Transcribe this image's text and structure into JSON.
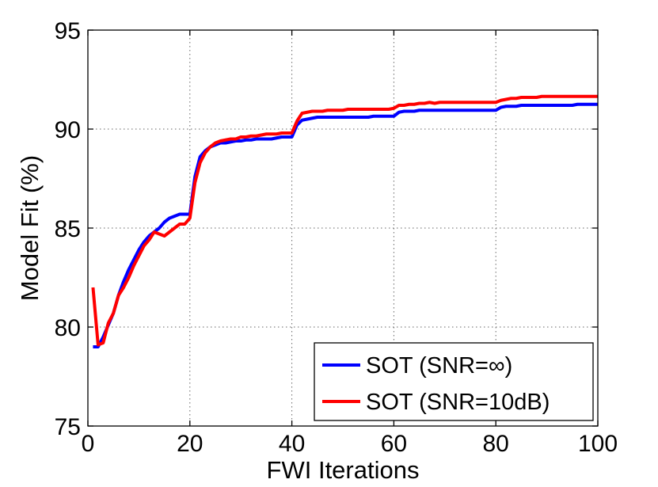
{
  "chart_data": {
    "type": "line",
    "title": "",
    "xlabel": "FWI Iterations",
    "ylabel": "Model Fit (%)",
    "xlim": [
      0,
      100
    ],
    "ylim": [
      75,
      95
    ],
    "xticks": [
      0,
      20,
      40,
      60,
      80,
      100
    ],
    "yticks": [
      75,
      80,
      85,
      90,
      95
    ],
    "xtick_labels": [
      "0",
      "20",
      "40",
      "60",
      "80",
      "100"
    ],
    "ytick_labels": [
      "75",
      "80",
      "85",
      "90",
      "95"
    ],
    "grid": true,
    "legend_position": "bottom-right",
    "series": [
      {
        "name": "SOT (SNR=∞)",
        "color": "#0000ff",
        "x": [
          1,
          2,
          3,
          4,
          5,
          6,
          7,
          8,
          9,
          10,
          11,
          12,
          13,
          14,
          15,
          16,
          17,
          18,
          19,
          20,
          21,
          22,
          23,
          24,
          25,
          26,
          27,
          28,
          29,
          30,
          31,
          32,
          33,
          34,
          35,
          36,
          37,
          38,
          39,
          40,
          41,
          42,
          43,
          44,
          45,
          46,
          47,
          48,
          49,
          50,
          51,
          52,
          53,
          54,
          55,
          56,
          57,
          58,
          59,
          60,
          61,
          62,
          63,
          64,
          65,
          66,
          67,
          68,
          69,
          70,
          71,
          72,
          73,
          74,
          75,
          76,
          77,
          78,
          79,
          80,
          81,
          82,
          83,
          84,
          85,
          86,
          87,
          88,
          89,
          90,
          91,
          92,
          93,
          94,
          95,
          96,
          97,
          98,
          99,
          100
        ],
        "y": [
          79.0,
          79.0,
          79.5,
          80.1,
          80.7,
          81.6,
          82.3,
          82.9,
          83.4,
          83.9,
          84.3,
          84.6,
          84.8,
          85.0,
          85.3,
          85.5,
          85.6,
          85.7,
          85.7,
          85.7,
          87.6,
          88.6,
          88.9,
          89.1,
          89.2,
          89.3,
          89.3,
          89.35,
          89.4,
          89.4,
          89.45,
          89.45,
          89.5,
          89.5,
          89.5,
          89.5,
          89.55,
          89.6,
          89.6,
          89.6,
          90.2,
          90.45,
          90.5,
          90.55,
          90.6,
          90.6,
          90.6,
          90.6,
          90.6,
          90.6,
          90.6,
          90.6,
          90.6,
          90.6,
          90.6,
          90.65,
          90.65,
          90.65,
          90.65,
          90.65,
          90.85,
          90.9,
          90.9,
          90.9,
          90.95,
          90.95,
          90.95,
          90.95,
          90.95,
          90.95,
          90.95,
          90.95,
          90.95,
          90.95,
          90.95,
          90.95,
          90.95,
          90.95,
          90.95,
          90.95,
          91.1,
          91.15,
          91.15,
          91.15,
          91.2,
          91.2,
          91.2,
          91.2,
          91.2,
          91.2,
          91.2,
          91.2,
          91.2,
          91.2,
          91.2,
          91.25,
          91.25,
          91.25,
          91.25,
          91.25
        ]
      },
      {
        "name": "SOT (SNR=10dB)",
        "color": "#ff0000",
        "x": [
          1,
          2,
          3,
          4,
          5,
          6,
          7,
          8,
          9,
          10,
          11,
          12,
          13,
          14,
          15,
          16,
          17,
          18,
          19,
          20,
          21,
          22,
          23,
          24,
          25,
          26,
          27,
          28,
          29,
          30,
          31,
          32,
          33,
          34,
          35,
          36,
          37,
          38,
          39,
          40,
          41,
          42,
          43,
          44,
          45,
          46,
          47,
          48,
          49,
          50,
          51,
          52,
          53,
          54,
          55,
          56,
          57,
          58,
          59,
          60,
          61,
          62,
          63,
          64,
          65,
          66,
          67,
          68,
          69,
          70,
          71,
          72,
          73,
          74,
          75,
          76,
          77,
          78,
          79,
          80,
          81,
          82,
          83,
          84,
          85,
          86,
          87,
          88,
          89,
          90,
          91,
          92,
          93,
          94,
          95,
          96,
          97,
          98,
          99,
          100
        ],
        "y": [
          82.0,
          79.1,
          79.2,
          80.2,
          80.7,
          81.6,
          82.0,
          82.5,
          83.1,
          83.6,
          84.1,
          84.4,
          84.8,
          84.7,
          84.6,
          84.8,
          85.0,
          85.2,
          85.2,
          85.5,
          87.3,
          88.3,
          88.8,
          89.1,
          89.3,
          89.4,
          89.45,
          89.5,
          89.5,
          89.6,
          89.6,
          89.65,
          89.65,
          89.7,
          89.75,
          89.75,
          89.75,
          89.8,
          89.8,
          89.8,
          90.4,
          90.8,
          90.85,
          90.9,
          90.9,
          90.9,
          90.95,
          90.95,
          90.95,
          90.95,
          91.0,
          91.0,
          91.0,
          91.0,
          91.0,
          91.0,
          91.0,
          91.0,
          91.0,
          91.05,
          91.2,
          91.2,
          91.25,
          91.25,
          91.3,
          91.3,
          91.35,
          91.3,
          91.35,
          91.35,
          91.35,
          91.35,
          91.35,
          91.35,
          91.35,
          91.35,
          91.35,
          91.35,
          91.35,
          91.35,
          91.45,
          91.5,
          91.55,
          91.55,
          91.6,
          91.6,
          91.6,
          91.6,
          91.65,
          91.65,
          91.65,
          91.65,
          91.65,
          91.65,
          91.65,
          91.65,
          91.65,
          91.65,
          91.65,
          91.65
        ]
      }
    ]
  }
}
